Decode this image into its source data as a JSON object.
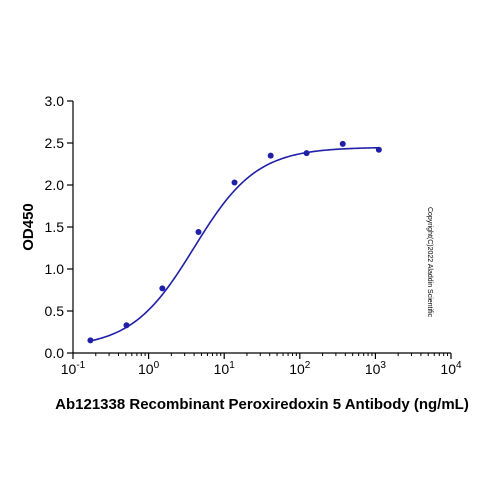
{
  "chart_data": {
    "type": "scatter",
    "title": "",
    "xlabel": "Ab121338 Recombinant Peroxiredoxin 5 Antibody (ng/mL)",
    "ylabel": "OD450",
    "xscale": "log",
    "xlim": [
      0.1,
      10000
    ],
    "ylim": [
      0,
      3.0
    ],
    "grid": false,
    "legend": "none",
    "x_ticks": [
      {
        "base": "10",
        "exp": "-1"
      },
      {
        "base": "10",
        "exp": "0"
      },
      {
        "base": "10",
        "exp": "1"
      },
      {
        "base": "10",
        "exp": "2"
      },
      {
        "base": "10",
        "exp": "3"
      },
      {
        "base": "10",
        "exp": "4"
      }
    ],
    "y_ticks": [
      "0.0",
      "0.5",
      "1.0",
      "1.5",
      "2.0",
      "2.5",
      "3.0"
    ],
    "series": [
      {
        "points": [
          {
            "x": 0.17,
            "y": 0.15
          },
          {
            "x": 0.51,
            "y": 0.33
          },
          {
            "x": 1.52,
            "y": 0.77
          },
          {
            "x": 4.57,
            "y": 1.44
          },
          {
            "x": 13.7,
            "y": 2.03
          },
          {
            "x": 41.2,
            "y": 2.35
          },
          {
            "x": 123,
            "y": 2.38
          },
          {
            "x": 370,
            "y": 2.49
          },
          {
            "x": 1111,
            "y": 2.42
          }
        ],
        "fit": {
          "bottom": 0.06,
          "top": 2.45,
          "ec50": 4.0,
          "hill": 1.05
        }
      }
    ],
    "annotation": "Copyright(C)2022 Aladdin Scientific",
    "colors": {
      "series": "#1f1fa8",
      "axis": "#000000"
    }
  }
}
